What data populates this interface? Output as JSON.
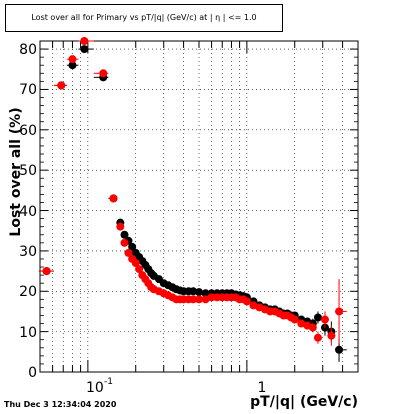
{
  "chart_data": {
    "type": "scatter",
    "title": "Lost over all for Primary vs pT/|q| (GeV/c) at | η | <= 1.0",
    "xlabel": "pT/|q| (GeV/c)",
    "ylabel": "Lost over all (%)",
    "x_scale": "log",
    "xlim": [
      0.05,
      5.0
    ],
    "ylim": [
      0,
      82
    ],
    "grid": true,
    "x_major_ticks": [
      0.1,
      1
    ],
    "x_tick_labels": [
      "10",
      "1"
    ],
    "x_tick_label_exponent": "-1",
    "y_ticks": [
      0,
      10,
      20,
      30,
      40,
      50,
      60,
      70,
      80
    ],
    "y_tick_labels": [
      "0",
      "10",
      "20",
      "30",
      "40",
      "50",
      "60",
      "70",
      "80"
    ],
    "series": [
      {
        "color": "#000000",
        "x": [
          0.055,
          0.068,
          0.08,
          0.095,
          0.125,
          0.145,
          0.16,
          0.17,
          0.18,
          0.19,
          0.2,
          0.21,
          0.22,
          0.23,
          0.24,
          0.25,
          0.26,
          0.28,
          0.3,
          0.32,
          0.34,
          0.36,
          0.38,
          0.4,
          0.43,
          0.46,
          0.5,
          0.55,
          0.6,
          0.65,
          0.7,
          0.75,
          0.8,
          0.85,
          0.9,
          0.95,
          1.0,
          1.1,
          1.2,
          1.3,
          1.4,
          1.5,
          1.6,
          1.7,
          1.8,
          1.9,
          2.0,
          2.2,
          2.4,
          2.6,
          2.8,
          3.1,
          3.4,
          3.8
        ],
        "y": [
          25,
          71,
          76,
          80,
          73,
          43,
          37,
          34,
          32.5,
          31,
          29.5,
          28.5,
          27.5,
          26.5,
          25.5,
          24.5,
          23.8,
          23,
          22,
          21.5,
          21,
          20.5,
          20.2,
          20,
          20,
          20,
          19.8,
          19.5,
          19.5,
          19.5,
          19.5,
          19.5,
          19.5,
          19.2,
          19,
          18.8,
          18.5,
          17.5,
          16.5,
          16,
          15.5,
          15.5,
          15,
          14.5,
          14.5,
          14,
          14,
          13,
          12.5,
          12,
          13.5,
          11,
          10,
          5.5
        ],
        "yerr": [
          0.5,
          0.5,
          0.5,
          0.5,
          0.5,
          0.4,
          0.4,
          0.3,
          0.3,
          0.3,
          0.3,
          0.3,
          0.3,
          0.3,
          0.3,
          0.3,
          0.3,
          0.3,
          0.3,
          0.3,
          0.3,
          0.3,
          0.3,
          0.3,
          0.3,
          0.3,
          0.3,
          0.3,
          0.3,
          0.3,
          0.3,
          0.3,
          0.3,
          0.3,
          0.3,
          0.3,
          0.3,
          0.4,
          0.4,
          0.4,
          0.5,
          0.5,
          0.5,
          0.6,
          0.6,
          0.7,
          0.7,
          0.8,
          1.0,
          1.2,
          1.5,
          2.0,
          2.5,
          3.0
        ]
      },
      {
        "color": "#ff0000",
        "x": [
          0.055,
          0.068,
          0.08,
          0.095,
          0.125,
          0.145,
          0.16,
          0.17,
          0.18,
          0.19,
          0.2,
          0.21,
          0.22,
          0.23,
          0.24,
          0.25,
          0.26,
          0.28,
          0.3,
          0.32,
          0.34,
          0.36,
          0.38,
          0.4,
          0.43,
          0.46,
          0.5,
          0.55,
          0.6,
          0.65,
          0.7,
          0.75,
          0.8,
          0.85,
          0.9,
          0.95,
          1.0,
          1.1,
          1.2,
          1.3,
          1.4,
          1.5,
          1.6,
          1.7,
          1.8,
          1.9,
          2.0,
          2.2,
          2.4,
          2.6,
          2.8,
          3.1,
          3.4,
          3.8
        ],
        "y": [
          25,
          71,
          77.5,
          82,
          74,
          43,
          36,
          32,
          29.5,
          28,
          27,
          25.5,
          24,
          23,
          22,
          21,
          20.5,
          20,
          19.5,
          19,
          18.5,
          18,
          18,
          18,
          18,
          18,
          18,
          18,
          18.5,
          18.5,
          18.5,
          18.5,
          18.5,
          18.5,
          18,
          18,
          17.5,
          16.5,
          16,
          15.5,
          15,
          15,
          14.5,
          14,
          14,
          13.5,
          13,
          12,
          11.5,
          11,
          8.5,
          13,
          9,
          15
        ],
        "yerr": [
          0.5,
          0.5,
          0.5,
          0.5,
          0.5,
          0.4,
          0.4,
          0.3,
          0.3,
          0.3,
          0.3,
          0.3,
          0.3,
          0.3,
          0.3,
          0.3,
          0.3,
          0.3,
          0.3,
          0.3,
          0.3,
          0.3,
          0.3,
          0.3,
          0.3,
          0.3,
          0.3,
          0.3,
          0.3,
          0.3,
          0.3,
          0.3,
          0.3,
          0.3,
          0.3,
          0.3,
          0.3,
          0.4,
          0.4,
          0.4,
          0.5,
          0.5,
          0.5,
          0.6,
          0.6,
          0.7,
          0.7,
          0.8,
          1.0,
          1.2,
          1.5,
          2.0,
          2.5,
          8.0
        ]
      }
    ]
  },
  "footer": {
    "timestamp": "Thu Dec  3 12:34:04 2020"
  }
}
